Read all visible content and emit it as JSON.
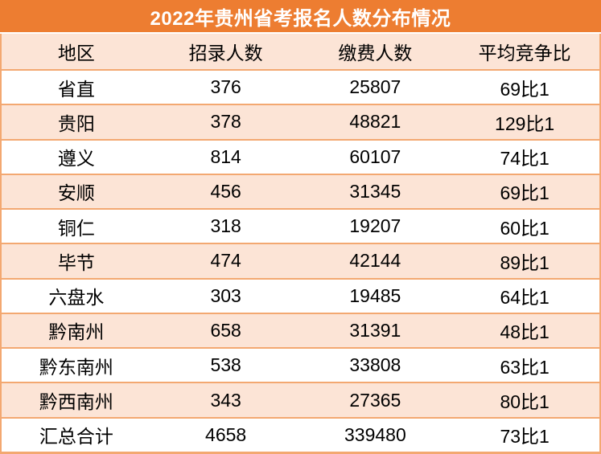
{
  "title": "2022年贵州省考报名人数分布情况",
  "colors": {
    "title_bg": "#ED7D31",
    "title_text": "#FFFFFF",
    "row_bg": "#FFFFFF",
    "row_alt_bg": "#FCE4D6",
    "border": "#F3A871",
    "text": "#000000"
  },
  "table": {
    "headers": [
      "地区",
      "招录人数",
      "缴费人数",
      "平均竞争比"
    ],
    "rows": [
      [
        "省直",
        "376",
        "25807",
        "69比1"
      ],
      [
        "贵阳",
        "378",
        "48821",
        "129比1"
      ],
      [
        "遵义",
        "814",
        "60107",
        "74比1"
      ],
      [
        "安顺",
        "456",
        "31345",
        "69比1"
      ],
      [
        "铜仁",
        "318",
        "19207",
        "60比1"
      ],
      [
        "毕节",
        "474",
        "42144",
        "89比1"
      ],
      [
        "六盘水",
        "303",
        "19485",
        "64比1"
      ],
      [
        "黔南州",
        "658",
        "31391",
        "48比1"
      ],
      [
        "黔东南州",
        "538",
        "33808",
        "63比1"
      ],
      [
        "黔西南州",
        "343",
        "27365",
        "80比1"
      ],
      [
        "汇总合计",
        "4658",
        "339480",
        "73比1"
      ]
    ]
  },
  "chart_data": {
    "type": "table",
    "title": "2022年贵州省考报名人数分布情况",
    "columns": [
      "地区",
      "招录人数",
      "缴费人数",
      "平均竞争比"
    ],
    "rows": [
      {
        "地区": "省直",
        "招录人数": 376,
        "缴费人数": 25807,
        "平均竞争比": "69比1"
      },
      {
        "地区": "贵阳",
        "招录人数": 378,
        "缴费人数": 48821,
        "平均竞争比": "129比1"
      },
      {
        "地区": "遵义",
        "招录人数": 814,
        "缴费人数": 60107,
        "平均竞争比": "74比1"
      },
      {
        "地区": "安顺",
        "招录人数": 456,
        "缴费人数": 31345,
        "平均竞争比": "69比1"
      },
      {
        "地区": "铜仁",
        "招录人数": 318,
        "缴费人数": 19207,
        "平均竞争比": "60比1"
      },
      {
        "地区": "毕节",
        "招录人数": 474,
        "缴费人数": 42144,
        "平均竞争比": "89比1"
      },
      {
        "地区": "六盘水",
        "招录人数": 303,
        "缴费人数": 19485,
        "平均竞争比": "64比1"
      },
      {
        "地区": "黔南州",
        "招录人数": 658,
        "缴费人数": 31391,
        "平均竞争比": "48比1"
      },
      {
        "地区": "黔东南州",
        "招录人数": 538,
        "缴费人数": 33808,
        "平均竞争比": "63比1"
      },
      {
        "地区": "黔西南州",
        "招录人数": 343,
        "缴费人数": 27365,
        "平均竞争比": "80比1"
      },
      {
        "地区": "汇总合计",
        "招录人数": 4658,
        "缴费人数": 339480,
        "平均竞争比": "73比1"
      }
    ],
    "layout": {
      "title_position": "top-banner",
      "alternating_row_fill": true,
      "column_dividers": false
    }
  }
}
